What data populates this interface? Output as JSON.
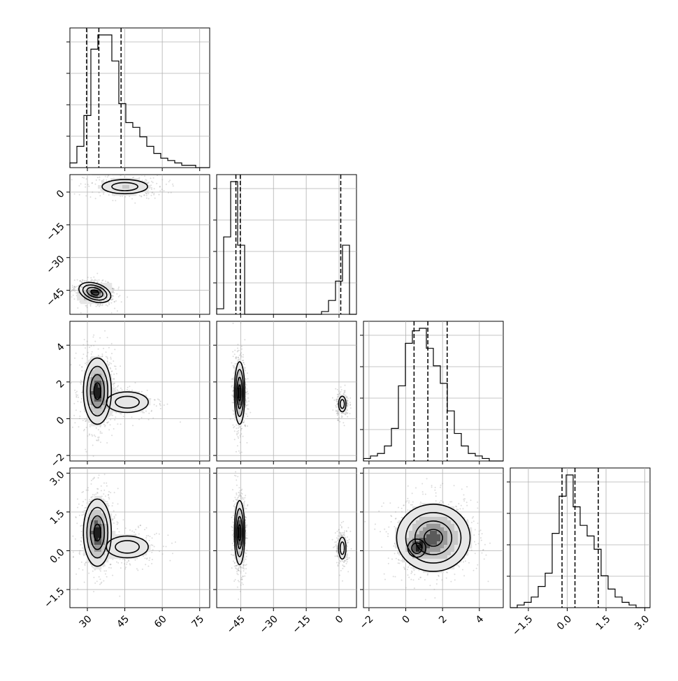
{
  "chart_data": {
    "type": "corner",
    "n_params": 4,
    "colors": {
      "ink": "#000000",
      "grid": "#b0b0b0",
      "scatter": "#9a9a9a",
      "background": "#ffffff"
    },
    "axes": [
      {
        "range": [
          23,
          79
        ],
        "ticks": [
          30,
          45,
          60,
          75
        ],
        "tick_labels": [
          "30",
          "45",
          "60",
          "75"
        ]
      },
      {
        "range": [
          -56,
          8
        ],
        "ticks": [
          -45,
          -30,
          -15,
          0
        ],
        "tick_labels": [
          "−45",
          "−30",
          "−15",
          "0"
        ]
      },
      {
        "range": [
          -2.3,
          5.3
        ],
        "ticks": [
          -2,
          0,
          2,
          4
        ],
        "tick_labels": [
          "−2",
          "0",
          "2",
          "4"
        ]
      },
      {
        "range": [
          -2.2,
          3.2
        ],
        "ticks": [
          -1.5,
          0.0,
          1.5,
          3.0
        ],
        "tick_labels": [
          "−1.5",
          "0.0",
          "1.5",
          "3.0"
        ]
      }
    ],
    "histograms": [
      {
        "param": 0,
        "bins": [
          23,
          25.8,
          28.6,
          31.4,
          34.2,
          37,
          39.8,
          42.6,
          45.4,
          48.2,
          51,
          53.8,
          56.6,
          59.4,
          62.2,
          65,
          67.8,
          70.6,
          73.4,
          76.2,
          79
        ],
        "counts": [
          2,
          9,
          22,
          50,
          56,
          56,
          45,
          27,
          19,
          17,
          13,
          9,
          6,
          4,
          3,
          2,
          1,
          1,
          0,
          0
        ],
        "quantiles": [
          29.7,
          34.6,
          43.5
        ]
      },
      {
        "param": 1,
        "bins": [
          -56,
          -52.8,
          -49.6,
          -46.4,
          -43.2,
          -40,
          -36.8,
          -33.6,
          -30.4,
          -27.2,
          -24,
          -20.8,
          -17.6,
          -14.4,
          -11.2,
          -8,
          -4.8,
          -1.6,
          1.6,
          4.8,
          8
        ],
        "counts": [
          2,
          28,
          48,
          25,
          0,
          0,
          0,
          0,
          0,
          0,
          0,
          0,
          0,
          0,
          0,
          1,
          5,
          12,
          25,
          0
        ],
        "quantiles": [
          -47.2,
          -45.2,
          0.8
        ]
      },
      {
        "param": 2,
        "bins": [
          -2.3,
          -1.92,
          -1.54,
          -1.16,
          -0.78,
          -0.4,
          -0.02,
          0.36,
          0.74,
          1.12,
          1.5,
          1.88,
          2.26,
          2.64,
          3.02,
          3.4,
          3.78,
          4.16,
          4.54,
          4.92,
          5.3
        ],
        "counts": [
          1,
          2,
          3,
          6,
          13,
          30,
          47,
          52,
          53,
          45,
          38,
          31,
          20,
          11,
          6,
          3,
          2,
          1,
          0,
          0
        ],
        "quantiles": [
          0.45,
          1.2,
          2.25
        ]
      },
      {
        "param": 3,
        "bins": [
          -2.2,
          -1.93,
          -1.66,
          -1.39,
          -1.12,
          -0.85,
          -0.58,
          -0.31,
          -0.04,
          0.23,
          0.5,
          0.77,
          1.04,
          1.31,
          1.58,
          1.85,
          2.12,
          2.39,
          2.66,
          2.93,
          3.2
        ],
        "counts": [
          0,
          1,
          2,
          4,
          8,
          13,
          28,
          42,
          50,
          38,
          31,
          27,
          22,
          12,
          7,
          4,
          2,
          1,
          0,
          0
        ],
        "quantiles": [
          -0.2,
          0.3,
          1.2
        ]
      }
    ],
    "joint": [
      {
        "x": 0,
        "y": 1,
        "blobs": [
          {
            "cx": 33,
            "cy": -46,
            "sx": 3.3,
            "sy": 2.1,
            "rot": -0.32,
            "w": 1.0
          },
          {
            "cx": 45,
            "cy": 2.5,
            "sx": 6.5,
            "sy": 2.3,
            "rot": 0,
            "w": 0.35
          }
        ]
      },
      {
        "x": 0,
        "y": 2,
        "blobs": [
          {
            "cx": 34,
            "cy": 1.5,
            "sx": 2.8,
            "sy": 0.9,
            "rot": 0,
            "w": 1.0
          },
          {
            "cx": 46,
            "cy": 0.9,
            "sx": 6,
            "sy": 0.4,
            "rot": 0,
            "w": 0.3
          }
        ]
      },
      {
        "x": 1,
        "y": 2,
        "blobs": [
          {
            "cx": -45.5,
            "cy": 1.4,
            "sx": 1.2,
            "sy": 0.85,
            "rot": 0,
            "w": 1.0
          },
          {
            "cx": 1.5,
            "cy": 0.8,
            "sx": 1.2,
            "sy": 0.3,
            "rot": 0,
            "w": 0.35
          }
        ]
      },
      {
        "x": 0,
        "y": 3,
        "blobs": [
          {
            "cx": 34,
            "cy": 0.7,
            "sx": 2.8,
            "sy": 0.65,
            "rot": 0,
            "w": 1.0
          },
          {
            "cx": 46,
            "cy": 0.15,
            "sx": 6,
            "sy": 0.3,
            "rot": 0,
            "w": 0.3
          }
        ]
      },
      {
        "x": 1,
        "y": 3,
        "blobs": [
          {
            "cx": -45.5,
            "cy": 0.7,
            "sx": 1.2,
            "sy": 0.62,
            "rot": 0,
            "w": 1.0
          },
          {
            "cx": 1.5,
            "cy": 0.1,
            "sx": 1.2,
            "sy": 0.3,
            "rot": 0,
            "w": 0.35
          }
        ]
      },
      {
        "x": 2,
        "y": 3,
        "blobs": [
          {
            "cx": 1.5,
            "cy": 0.5,
            "sx": 1.0,
            "sy": 0.65,
            "rot": 0,
            "w": 1.0
          },
          {
            "cx": 0.6,
            "cy": 0.1,
            "sx": 0.35,
            "sy": 0.25,
            "rot": 0,
            "w": 0.6
          }
        ]
      }
    ]
  }
}
